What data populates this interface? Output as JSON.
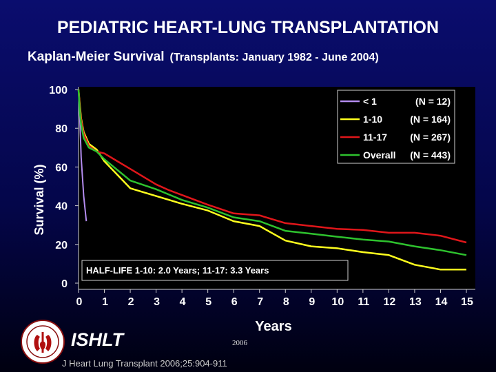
{
  "header": {
    "title": "PEDIATRIC HEART-LUNG TRANSPLANTATION",
    "subtitle": "Kaplan-Meier Survival",
    "subtitle_paren": "(Transplants: January 1982 - June 2004)"
  },
  "chart_data": {
    "type": "line",
    "xlabel": "Years",
    "ylabel": "Survival (%)",
    "xlim": [
      0,
      15
    ],
    "ylim": [
      0,
      100
    ],
    "xticks": [
      "0",
      "1",
      "2",
      "3",
      "4",
      "5",
      "6",
      "7",
      "8",
      "9",
      "10",
      "11",
      "12",
      "13",
      "14",
      "15"
    ],
    "yticks": [
      "0",
      "20",
      "40",
      "60",
      "80",
      "100"
    ],
    "legend_position": "top-right",
    "annotation": "HALF-LIFE 1-10: 2.0 Years; 11-17: 3.3 Years",
    "background_color": "#000000",
    "series": [
      {
        "name": "< 1",
        "n_label": "(N = 12)",
        "color": "#b48cf0",
        "points": [
          [
            0,
            100
          ],
          [
            0.05,
            85
          ],
          [
            0.1,
            65
          ],
          [
            0.2,
            45
          ],
          [
            0.3,
            32
          ]
        ]
      },
      {
        "name": "1-10",
        "n_label": "(N = 164)",
        "color": "#ffff1e",
        "points": [
          [
            0,
            100
          ],
          [
            0.05,
            92
          ],
          [
            0.1,
            85
          ],
          [
            0.2,
            78
          ],
          [
            0.4,
            72
          ],
          [
            0.7,
            69
          ],
          [
            1,
            63
          ],
          [
            1.5,
            56
          ],
          [
            2,
            49
          ],
          [
            2.5,
            47
          ],
          [
            3,
            45
          ],
          [
            3.5,
            43
          ],
          [
            4,
            41
          ],
          [
            5,
            37.5
          ],
          [
            6,
            32
          ],
          [
            7,
            29.5
          ],
          [
            8,
            22
          ],
          [
            9,
            19
          ],
          [
            10,
            18
          ],
          [
            11,
            16
          ],
          [
            12,
            14.5
          ],
          [
            13,
            9.5
          ],
          [
            14,
            7
          ],
          [
            15,
            7
          ]
        ]
      },
      {
        "name": "11-17",
        "n_label": "(N = 267)",
        "color": "#e0161a",
        "points": [
          [
            0,
            100
          ],
          [
            0.05,
            90
          ],
          [
            0.1,
            84
          ],
          [
            0.2,
            77
          ],
          [
            0.4,
            71
          ],
          [
            0.7,
            68
          ],
          [
            1,
            67
          ],
          [
            1.5,
            63
          ],
          [
            2,
            59
          ],
          [
            2.5,
            55
          ],
          [
            3,
            51
          ],
          [
            3.5,
            48
          ],
          [
            4,
            45.5
          ],
          [
            5,
            40.5
          ],
          [
            6,
            36
          ],
          [
            7,
            35
          ],
          [
            8,
            31
          ],
          [
            9,
            29.5
          ],
          [
            10,
            28
          ],
          [
            11,
            27.5
          ],
          [
            12,
            26
          ],
          [
            13,
            26
          ],
          [
            14,
            24.5
          ],
          [
            15,
            21
          ]
        ]
      },
      {
        "name": "Overall",
        "n_label": "(N = 443)",
        "color": "#2ec22e",
        "points": [
          [
            0,
            100
          ],
          [
            0.05,
            88
          ],
          [
            0.1,
            82
          ],
          [
            0.2,
            75
          ],
          [
            0.4,
            70
          ],
          [
            0.7,
            68
          ],
          [
            1,
            64
          ],
          [
            1.5,
            58.5
          ],
          [
            2,
            53
          ],
          [
            3,
            48.5
          ],
          [
            4,
            43
          ],
          [
            5,
            39
          ],
          [
            6,
            34
          ],
          [
            7,
            32
          ],
          [
            8,
            27
          ],
          [
            9,
            25.5
          ],
          [
            10,
            24
          ],
          [
            11,
            22.5
          ],
          [
            12,
            21.5
          ],
          [
            13,
            19
          ],
          [
            14,
            17
          ],
          [
            15,
            14.5
          ]
        ]
      }
    ]
  },
  "footer": {
    "logo_text": "ISHLT",
    "year": "2006",
    "citation": "J Heart Lung Transplant 2006;25:904-911"
  }
}
